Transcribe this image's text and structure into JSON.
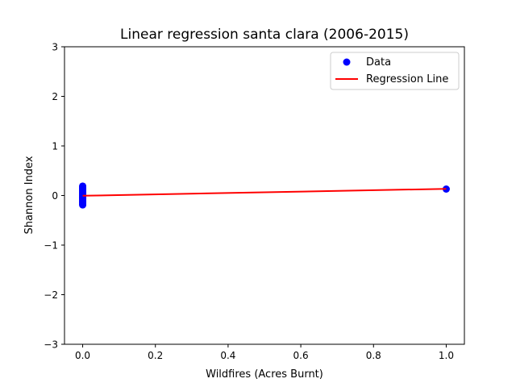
{
  "chart_data": {
    "type": "scatter",
    "title": "Linear regression santa clara (2006-2015)",
    "xlabel": "Wildfires (Acres Burnt)",
    "ylabel": "Shannon Index",
    "xlim": [
      -0.05,
      1.05
    ],
    "ylim": [
      -3,
      3
    ],
    "x_ticks": [
      0.0,
      0.2,
      0.4,
      0.6,
      0.8,
      1.0
    ],
    "x_tick_labels": [
      "0.0",
      "0.2",
      "0.4",
      "0.6",
      "0.8",
      "1.0"
    ],
    "y_ticks": [
      -3,
      -2,
      -1,
      0,
      1,
      2,
      3
    ],
    "y_tick_labels": [
      "−3",
      "−2",
      "−1",
      "0",
      "1",
      "2",
      "3"
    ],
    "grid": false,
    "legend_position": "top-right",
    "series": [
      {
        "name": "Data",
        "kind": "scatter",
        "color": "#0000ff",
        "points": [
          [
            0,
            -0.19
          ],
          [
            0,
            -0.17
          ],
          [
            0,
            -0.15
          ],
          [
            0,
            -0.13
          ],
          [
            0,
            -0.11
          ],
          [
            0,
            -0.09
          ],
          [
            0,
            -0.07
          ],
          [
            0,
            -0.05
          ],
          [
            0,
            -0.03
          ],
          [
            0,
            -0.01
          ],
          [
            0,
            0.01
          ],
          [
            0,
            0.03
          ],
          [
            0,
            0.05
          ],
          [
            0,
            0.07
          ],
          [
            0,
            0.09
          ],
          [
            0,
            0.11
          ],
          [
            0,
            0.13
          ],
          [
            0,
            0.15
          ],
          [
            0,
            0.17
          ],
          [
            0,
            0.19
          ],
          [
            1.0,
            0.13
          ]
        ]
      },
      {
        "name": "Regression Line",
        "kind": "line",
        "color": "#ff0000",
        "points": [
          [
            0,
            -0.005
          ],
          [
            1.0,
            0.135
          ]
        ]
      }
    ]
  }
}
